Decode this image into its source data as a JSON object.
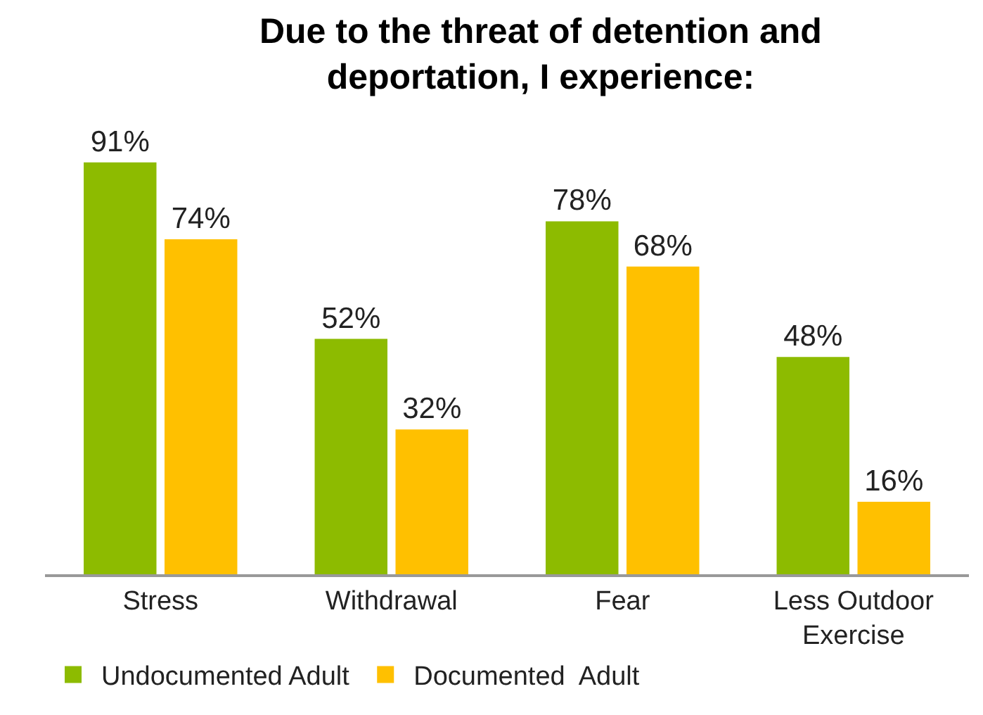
{
  "chart_data": {
    "type": "bar",
    "title": "Due to the threat of detention and deportation, I experience:",
    "categories": [
      "Stress",
      "Withdrawal",
      "Fear",
      "Less Outdoor Exercise"
    ],
    "series": [
      {
        "name": "Undocumented Adult",
        "color": "#8dbb00",
        "values": [
          91,
          52,
          78,
          48
        ],
        "value_labels": [
          "91%",
          "52%",
          "78%",
          "48%"
        ]
      },
      {
        "name": "Documented  Adult",
        "color": "#ffc000",
        "values": [
          74,
          32,
          68,
          16
        ],
        "value_labels": [
          "74%",
          "32%",
          "68%",
          "16%"
        ]
      }
    ],
    "legend": "bottom left"
  }
}
